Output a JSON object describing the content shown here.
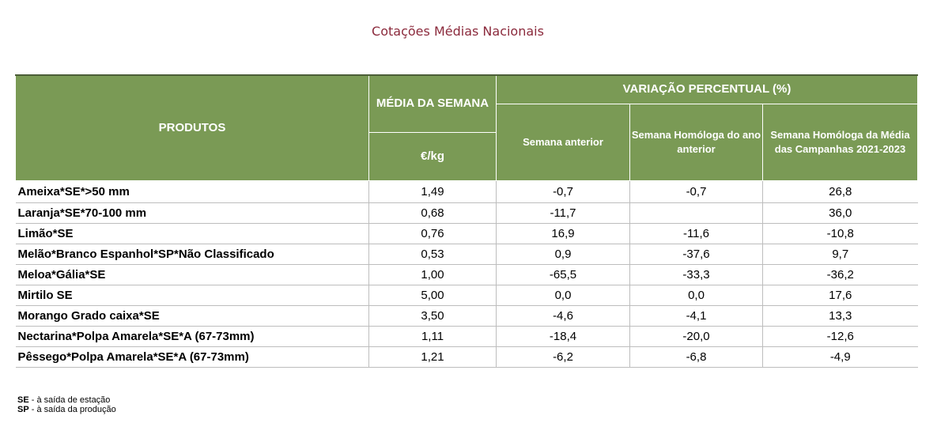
{
  "title": "Cotações Médias Nacionais",
  "header": {
    "produtos": "PRODUTOS",
    "media_semana": "MÉDIA DA SEMANA",
    "unidade": "€/kg",
    "variacao": "VARIAÇÃO PERCENTUAL (%)",
    "semana_anterior": "Semana anterior",
    "semana_homologa": "Semana Homóloga do ano anterior",
    "semana_homologa_media": "Semana Homóloga da Média das Campanhas 2021-2023"
  },
  "rows": [
    {
      "produto": "Ameixa*SE*>50 mm",
      "media": "1,49",
      "anterior": "-0,7",
      "homologa": "-0,7",
      "campanhas": "26,8"
    },
    {
      "produto": "Laranja*SE*70-100 mm",
      "media": "0,68",
      "anterior": "-11,7",
      "homologa": "",
      "campanhas": "36,0"
    },
    {
      "produto": "Limão*SE",
      "media": "0,76",
      "anterior": "16,9",
      "homologa": "-11,6",
      "campanhas": "-10,8"
    },
    {
      "produto": "Melão*Branco Espanhol*SP*Não Classificado",
      "media": "0,53",
      "anterior": "0,9",
      "homologa": "-37,6",
      "campanhas": "9,7"
    },
    {
      "produto": "Meloa*Gália*SE",
      "media": "1,00",
      "anterior": "-65,5",
      "homologa": "-33,3",
      "campanhas": "-36,2"
    },
    {
      "produto": "Mirtilo SE",
      "media": "5,00",
      "anterior": "0,0",
      "homologa": "0,0",
      "campanhas": "17,6"
    },
    {
      "produto": "Morango Grado caixa*SE",
      "media": "3,50",
      "anterior": "-4,6",
      "homologa": "-4,1",
      "campanhas": "13,3"
    },
    {
      "produto": "Nectarina*Polpa Amarela*SE*A (67-73mm)",
      "media": "1,11",
      "anterior": "-18,4",
      "homologa": "-20,0",
      "campanhas": "-12,6"
    },
    {
      "produto": "Pêssego*Polpa Amarela*SE*A (67-73mm)",
      "media": "1,21",
      "anterior": "-6,2",
      "homologa": "-6,8",
      "campanhas": "-4,9"
    }
  ],
  "legend": [
    {
      "abbr": "SE",
      "text": " - à saída de estação"
    },
    {
      "abbr": "SP",
      "text": " - à saída da produção"
    }
  ]
}
